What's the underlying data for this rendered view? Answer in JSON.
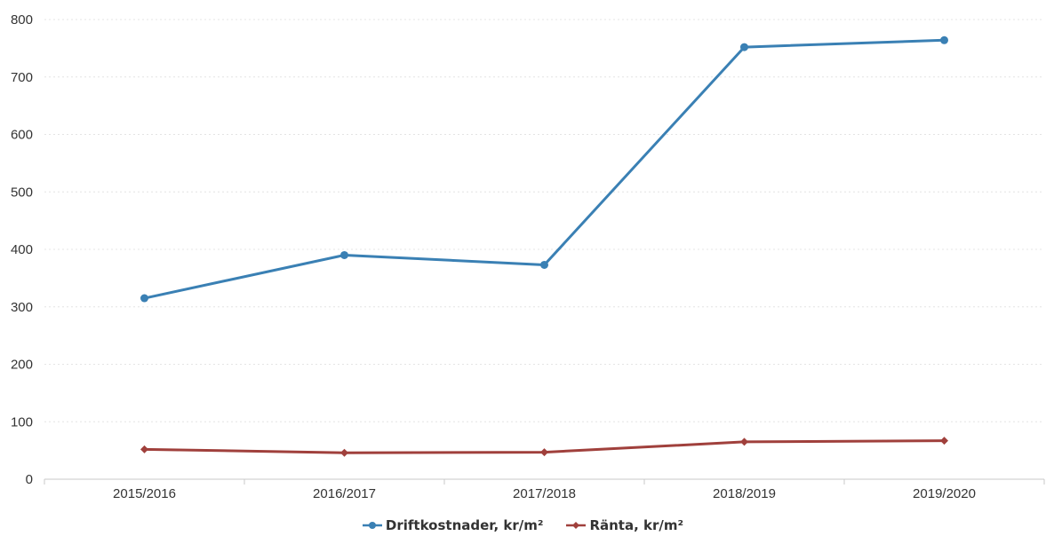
{
  "chart_data": {
    "type": "line",
    "title": "",
    "xlabel": "",
    "ylabel": "",
    "categories": [
      "2015/2016",
      "2016/2017",
      "2017/2018",
      "2018/2019",
      "2019/2020"
    ],
    "series": [
      {
        "name": "Driftkostnader, kr/m²",
        "color": "#3a80b4",
        "marker": "circle",
        "values": [
          315,
          390,
          373,
          752,
          764
        ]
      },
      {
        "name": "Ränta, kr/m²",
        "color": "#a0403c",
        "marker": "diamond",
        "values": [
          52,
          46,
          47,
          65,
          67
        ]
      }
    ],
    "yticks": [
      "0",
      "100",
      "200",
      "300",
      "400",
      "500",
      "600",
      "700",
      "800"
    ],
    "ylim": [
      0,
      800
    ],
    "grid": true,
    "legend_position": "bottom"
  }
}
